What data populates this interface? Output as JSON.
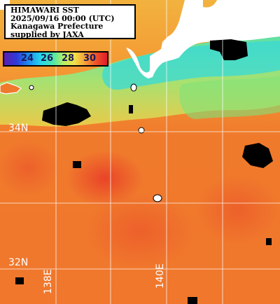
{
  "info": {
    "line1": "HIMAWARI SST",
    "line2": "2025/09/16 00:00 (UTC)",
    "line3": "Kanagawa Prefecture",
    "line4": "supplied by JAXA"
  },
  "colorbar": {
    "ticks": [
      "24",
      "26",
      "28",
      "30"
    ],
    "colors": [
      "#5a1fb0",
      "#2f3ad8",
      "#1d8ef0",
      "#29d7e8",
      "#52e6a6",
      "#b9ef62",
      "#f2e04a",
      "#f6a43a",
      "#ef5a2a",
      "#e01b2a"
    ]
  },
  "grid": {
    "lat_top": "34N",
    "lat_bottom": "32N",
    "lon_left": "138E",
    "lon_right": "140E"
  },
  "colors": {
    "land": "#000000",
    "ocean_warm": "#f07a2c",
    "ocean_hot": "#e8442a",
    "coastal_cool": "#5fe8a2",
    "gridline": "#ffffff"
  }
}
